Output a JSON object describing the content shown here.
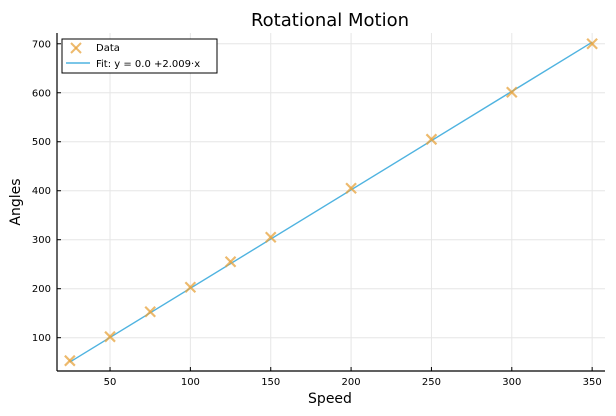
{
  "chart_data": {
    "type": "scatter",
    "title": "Rotational Motion",
    "xlabel": "Speed",
    "ylabel": "Angles",
    "xlim": [
      17,
      358
    ],
    "ylim": [
      32,
      722
    ],
    "xticks": [
      50,
      100,
      150,
      200,
      250,
      300,
      350
    ],
    "yticks": [
      100,
      200,
      300,
      400,
      500,
      600,
      700
    ],
    "grid": true,
    "legend_position": "top-left",
    "series": [
      {
        "name": "Data",
        "kind": "scatter",
        "marker": "x",
        "color": "#e8a33d",
        "x": [
          25,
          50,
          75,
          100,
          125,
          150,
          200,
          250,
          300,
          350
        ],
        "y": [
          53,
          102,
          153,
          203,
          255,
          305,
          405,
          505,
          601,
          700
        ]
      },
      {
        "name": "Fit: y = 0.0 +2.009·x",
        "kind": "line",
        "color": "#4fb3e0",
        "x": [
          25,
          350
        ],
        "y": [
          50.2,
          703.2
        ]
      }
    ]
  }
}
